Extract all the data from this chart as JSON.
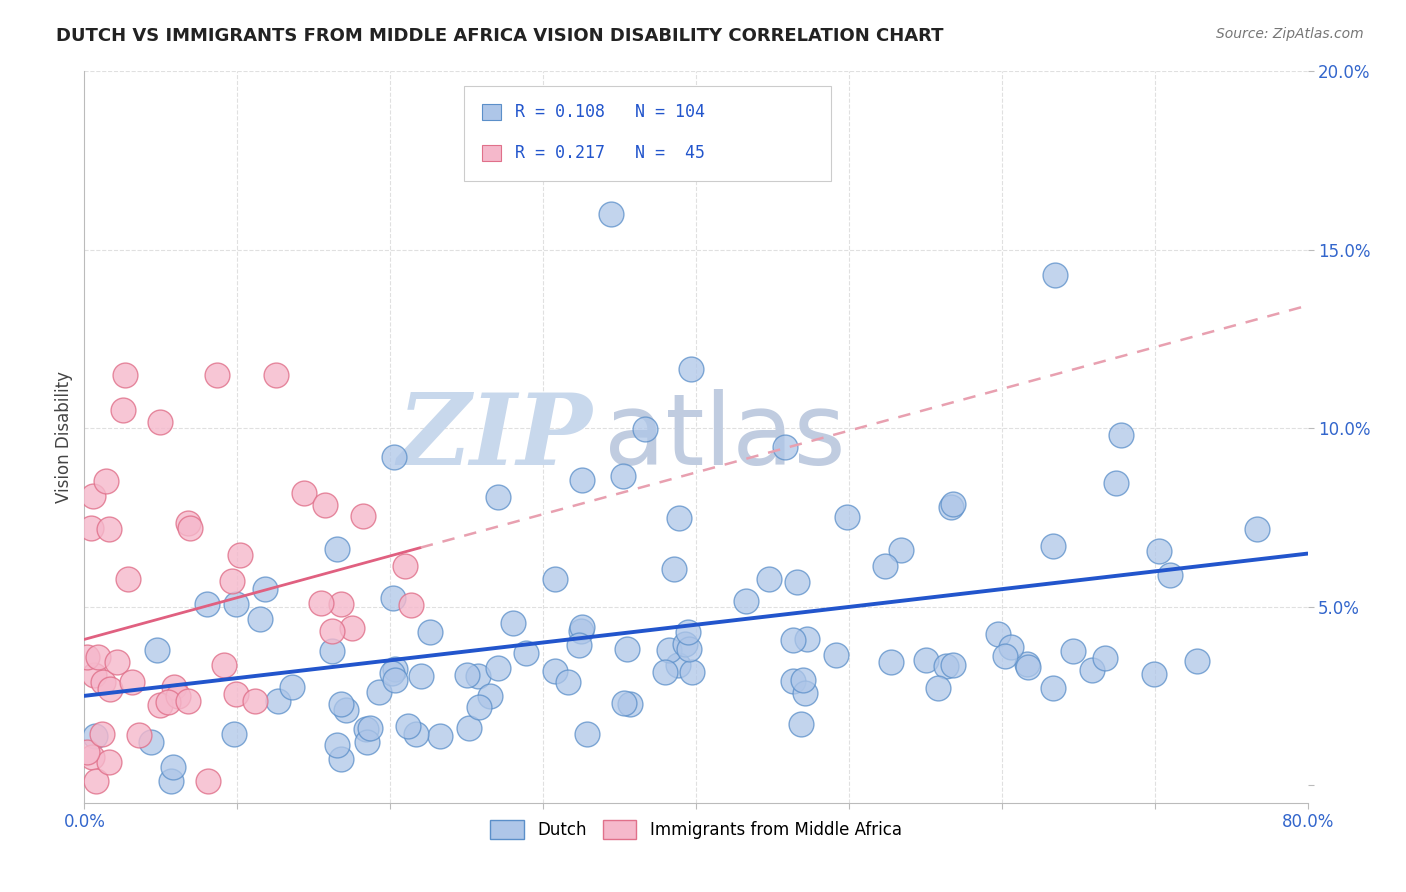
{
  "title": "DUTCH VS IMMIGRANTS FROM MIDDLE AFRICA VISION DISABILITY CORRELATION CHART",
  "source": "Source: ZipAtlas.com",
  "ylabel": "Vision Disability",
  "xlim": [
    0.0,
    0.8
  ],
  "ylim": [
    -0.005,
    0.2
  ],
  "xticks": [
    0.0,
    0.1,
    0.2,
    0.3,
    0.4,
    0.5,
    0.6,
    0.7,
    0.8
  ],
  "xticklabels": [
    "0.0%",
    "",
    "",
    "",
    "",
    "",
    "",
    "",
    "80.0%"
  ],
  "yticks": [
    0.0,
    0.05,
    0.1,
    0.15,
    0.2
  ],
  "yticklabels": [
    "",
    "5.0%",
    "10.0%",
    "15.0%",
    "20.0%"
  ],
  "dutch_color": "#aec6e8",
  "dutch_edge_color": "#5b8fc9",
  "immigrant_color": "#f5b8cb",
  "immigrant_edge_color": "#e0708a",
  "dutch_R": 0.108,
  "dutch_N": 104,
  "immigrant_R": 0.217,
  "immigrant_N": 45,
  "legend_color": "#2255cc",
  "watermark_zip": "ZIP",
  "watermark_atlas": "atlas",
  "watermark_color_zip": "#c8d8ec",
  "watermark_color_atlas": "#c0cce0",
  "dutch_line_color": "#2255cc",
  "immigrant_line_color": "#e06080",
  "immigrant_dashed_color": "#e8a0b0",
  "background_color": "#ffffff",
  "grid_color": "#e0e0e0",
  "tick_color": "#3366cc"
}
